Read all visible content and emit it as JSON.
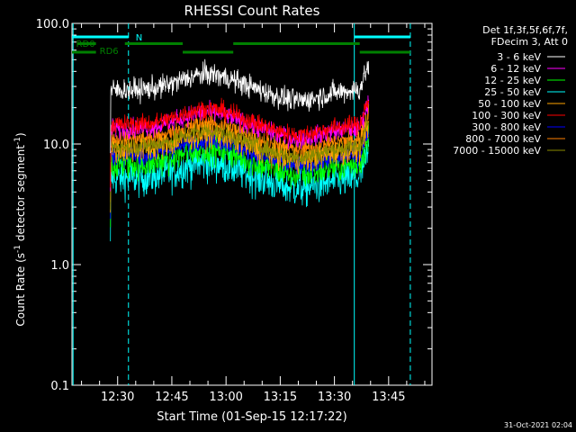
{
  "chart_data": {
    "type": "line",
    "title": "RHESSI Count Rates",
    "xlabel": "Start Time (01-Sep-15 12:17:22)",
    "ylabel_main": "Count Rate (s",
    "ylabel_sup1": "-1",
    "ylabel_mid": " detector segment",
    "ylabel_sup2": "-1",
    "ylabel_end": ")",
    "yscale": "log",
    "ylim": [
      0.1,
      100
    ],
    "xlim": [
      "12:17:22",
      "13:57:00"
    ],
    "x_ticks": [
      "12:30",
      "12:45",
      "13:00",
      "13:15",
      "13:30",
      "13:45"
    ],
    "y_ticks": [
      "0.1",
      "1.0",
      "10.0",
      "100.0"
    ],
    "legend_header": [
      "Det 1f,3f,5f,6f,7f,",
      "FDecim 3, Att 0"
    ],
    "series": [
      {
        "name": "3 - 6 keV",
        "color": "#ffffff",
        "level": 28,
        "noise": 0.06
      },
      {
        "name": "6 - 12 keV",
        "color": "#ff00ff",
        "level": 13.5,
        "noise": 0.05
      },
      {
        "name": "12 - 25 keV",
        "color": "#00ff00",
        "level": 6.8,
        "noise": 0.08
      },
      {
        "name": "25 - 50 keV",
        "color": "#00ffff",
        "level": 5.2,
        "noise": 0.1
      },
      {
        "name": "50 - 100 keV",
        "color": "#ffa500",
        "level": 9.0,
        "noise": 0.07
      },
      {
        "name": "100 - 300 keV",
        "color": "#ff0000",
        "level": 14.5,
        "noise": 0.05
      },
      {
        "name": "300 - 800 keV",
        "color": "#0000ff",
        "level": 8.0,
        "noise": 0.05
      },
      {
        "name": "800 - 7000 keV",
        "color": "#ff8000",
        "level": 11.0,
        "noise": 0.05
      },
      {
        "name": "7000 - 15000 keV",
        "color": "#8b8b00",
        "level": 9.5,
        "noise": 0.05
      }
    ],
    "annotations": [
      {
        "label": "N",
        "color": "#00ffff"
      },
      {
        "label": "RD0",
        "color": "#008000"
      },
      {
        "label": "RD6",
        "color": "#008000"
      }
    ],
    "footer_date": "31-Oct-2021 02:04"
  }
}
